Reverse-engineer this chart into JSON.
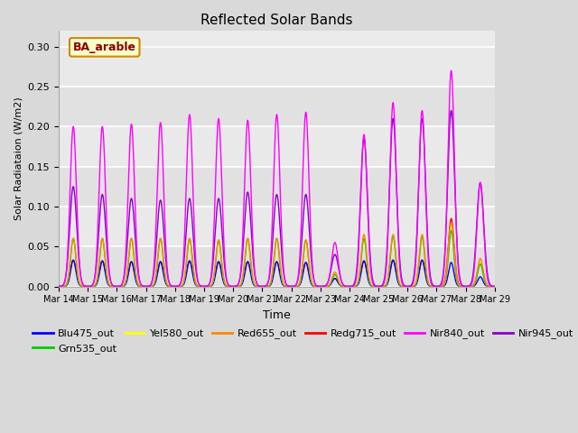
{
  "title": "Reflected Solar Bands",
  "xlabel": "Time",
  "ylabel": "Solar Radiataion (W/m2)",
  "annotation": "BA_arable",
  "ylim": [
    0.0,
    0.32
  ],
  "yticks": [
    0.0,
    0.05,
    0.1,
    0.15,
    0.2,
    0.25,
    0.3
  ],
  "xtick_labels": [
    "Mar 14",
    "Mar 15",
    "Mar 16",
    "Mar 17",
    "Mar 18",
    "Mar 19",
    "Mar 20",
    "Mar 21",
    "Mar 22",
    "Mar 23",
    "Mar 24",
    "Mar 25",
    "Mar 26",
    "Mar 27",
    "Mar 28",
    "Mar 29"
  ],
  "bands": {
    "Blu475_out": {
      "color": "#0000ff",
      "lw": 1.0
    },
    "Grn535_out": {
      "color": "#00cc00",
      "lw": 1.0
    },
    "Yel580_out": {
      "color": "#ffff00",
      "lw": 1.0
    },
    "Red655_out": {
      "color": "#ff8800",
      "lw": 1.0
    },
    "Redg715_out": {
      "color": "#ff0000",
      "lw": 1.0
    },
    "Nir840_out": {
      "color": "#ff00ff",
      "lw": 1.0
    },
    "Nir945_out": {
      "color": "#8800cc",
      "lw": 1.0
    }
  },
  "bg_color": "#d9d9d9",
  "plot_bg": "#ebebeb",
  "nir840_peaks": [
    0.2,
    0.2,
    0.203,
    0.205,
    0.215,
    0.21,
    0.208,
    0.215,
    0.218,
    0.055,
    0.19,
    0.23,
    0.22,
    0.27,
    0.13
  ],
  "nir945_peaks": [
    0.125,
    0.115,
    0.11,
    0.108,
    0.11,
    0.11,
    0.118,
    0.115,
    0.115,
    0.04,
    0.185,
    0.21,
    0.21,
    0.22,
    0.13
  ],
  "red655_peaks": [
    0.06,
    0.06,
    0.06,
    0.06,
    0.06,
    0.058,
    0.06,
    0.06,
    0.058,
    0.018,
    0.065,
    0.065,
    0.065,
    0.08,
    0.035
  ],
  "yel580_peaks": [
    0.058,
    0.058,
    0.058,
    0.058,
    0.058,
    0.056,
    0.058,
    0.058,
    0.056,
    0.016,
    0.06,
    0.063,
    0.062,
    0.075,
    0.03
  ],
  "grn535_peaks": [
    0.06,
    0.06,
    0.06,
    0.06,
    0.06,
    0.058,
    0.06,
    0.06,
    0.058,
    0.015,
    0.06,
    0.063,
    0.062,
    0.07,
    0.028
  ],
  "redg715_peaks": [
    0.033,
    0.032,
    0.031,
    0.031,
    0.032,
    0.031,
    0.031,
    0.031,
    0.03,
    0.01,
    0.032,
    0.033,
    0.033,
    0.085,
    0.03
  ],
  "blu475_peaks": [
    0.033,
    0.032,
    0.031,
    0.031,
    0.032,
    0.031,
    0.031,
    0.031,
    0.03,
    0.01,
    0.032,
    0.033,
    0.033,
    0.03,
    0.012
  ]
}
